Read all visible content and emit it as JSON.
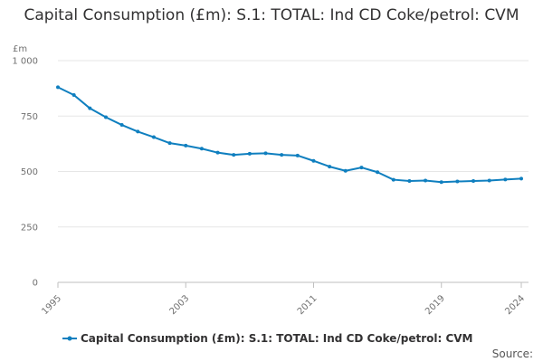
{
  "title": "Capital Consumption (£m): S.1: TOTAL: Ind CD Coke/petrol: CVM",
  "source_label": "Source:",
  "chart_data": {
    "type": "line",
    "title": "Capital Consumption (£m): S.1: TOTAL: Ind CD Coke/petrol: CVM",
    "unit_label": "£m",
    "xlabel": "",
    "ylabel": "",
    "x": [
      1995,
      1996,
      1997,
      1998,
      1999,
      2000,
      2001,
      2002,
      2003,
      2004,
      2005,
      2006,
      2007,
      2008,
      2009,
      2010,
      2011,
      2012,
      2013,
      2014,
      2015,
      2016,
      2017,
      2018,
      2019,
      2020,
      2021,
      2022,
      2023,
      2024
    ],
    "series": [
      {
        "name": "Capital Consumption (£m): S.1: TOTAL: Ind CD Coke/petrol: CVM",
        "color": "#0f7fbf",
        "values": [
          880,
          845,
          785,
          745,
          710,
          680,
          655,
          628,
          617,
          603,
          585,
          575,
          580,
          582,
          575,
          572,
          548,
          522,
          503,
          518,
          497,
          463,
          457,
          459,
          452,
          455,
          457,
          459,
          464,
          468
        ]
      }
    ],
    "xticks": [
      1995,
      2003,
      2011,
      2019,
      2024
    ],
    "yticks": [
      0,
      250,
      500,
      750,
      1000
    ],
    "ytick_labels": [
      "0",
      "250",
      "500",
      "750",
      "1 000"
    ],
    "xlim": [
      1995,
      2024
    ],
    "ylim": [
      0,
      1000
    ],
    "grid": "horizontal",
    "legend": "bottom"
  }
}
